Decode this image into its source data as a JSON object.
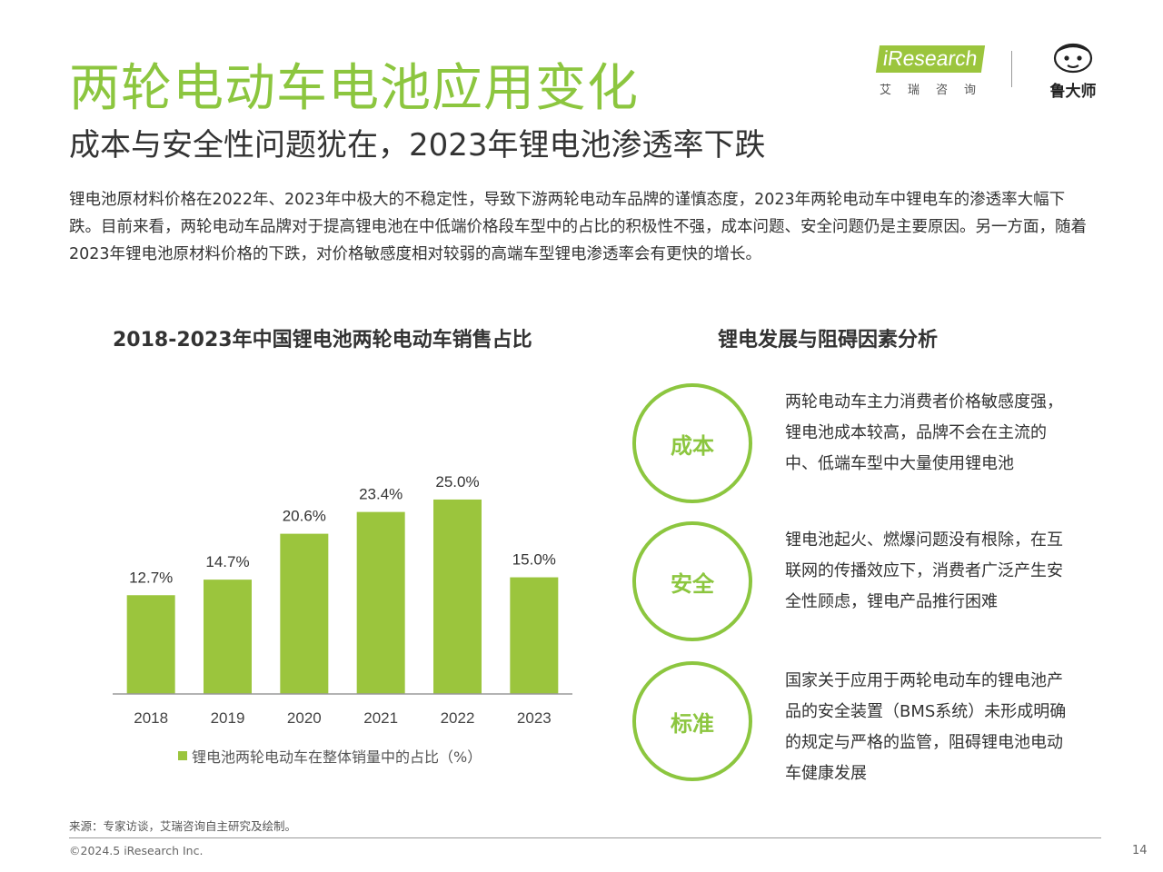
{
  "header": {
    "title": "两轮电动车电池应用变化",
    "subtitle": "成本与安全性问题犹在，2023年锂电池渗透率下跌",
    "intro": "锂电池原材料价格在2022年、2023年中极大的不稳定性，导致下游两轮电动车品牌的谨慎态度，2023年两轮电动车中锂电车的渗透率大幅下跌。目前来看，两轮电动车品牌对于提高锂电池在中低端价格段车型中的占比的积极性不强，成本问题、安全问题仍是主要原因。另一方面，随着2023年锂电池原材料价格的下跌，对价格敏感度相对较弱的高端车型锂电渗透率会有更快的增长。"
  },
  "logos": {
    "iresearch": "iResearch",
    "iresearch_cn": "艾瑞咨询",
    "ludashi": "鲁大师"
  },
  "chart_data": {
    "type": "bar",
    "title": "2018-2023年中国锂电池两轮电动车销售占比",
    "categories": [
      "2018",
      "2019",
      "2020",
      "2021",
      "2022",
      "2023"
    ],
    "series": [
      {
        "name": "锂电池两轮电动车在整体销量中的占比（%）",
        "values": [
          12.7,
          14.7,
          20.6,
          23.4,
          25.0,
          15.0
        ],
        "labels": [
          "12.7%",
          "14.7%",
          "20.6%",
          "23.4%",
          "25.0%",
          "15.0%"
        ]
      }
    ],
    "ylim": [
      0,
      32
    ],
    "grid": false,
    "legend_position": "bottom",
    "bar_color": "#9bc53d"
  },
  "analysis": {
    "title": "锂电发展与阻碍因素分析",
    "factors": [
      {
        "label": "成本",
        "description": "两轮电动车主力消费者价格敏感度强，锂电池成本较高，品牌不会在主流的中、低端车型中大量使用锂电池"
      },
      {
        "label": "安全",
        "description": "锂电池起火、燃爆问题没有根除，在互联网的传播效应下，消费者广泛产生安全性顾虑，锂电产品推行困难"
      },
      {
        "label": "标准",
        "description": "国家关于应用于两轮电动车的锂电池产品的安全装置（BMS系统）未形成明确的规定与严格的监管，阻碍锂电池电动车健康发展"
      }
    ]
  },
  "footer": {
    "source": "来源：专家访谈，艾瑞咨询自主研究及绘制。",
    "copyright": "©2024.5 iResearch Inc.",
    "page_number": "14"
  },
  "colors": {
    "accent": "#8cc63f",
    "bar": "#9bc53d"
  }
}
